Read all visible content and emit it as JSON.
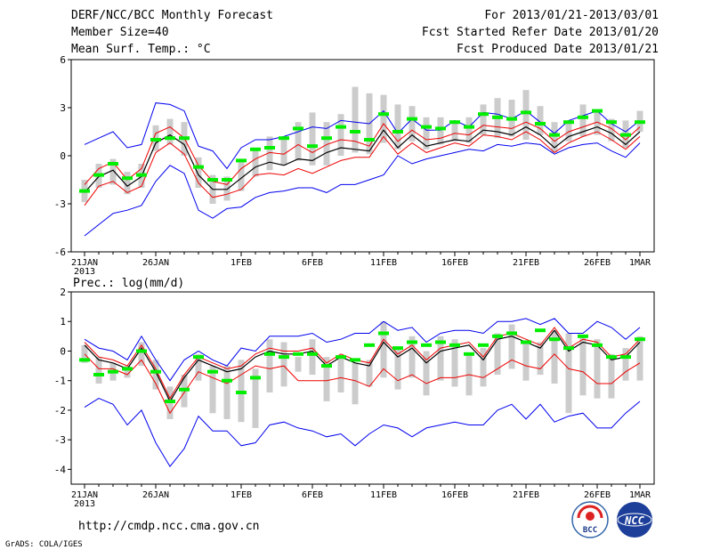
{
  "header": {
    "title": "DERF/NCC/BCC Monthly Forecast",
    "member": "Member Size=40",
    "variable": "Mean Surf. Temp.: °C",
    "forecast_range": "For 2013/01/21-2013/03/01",
    "started": "Fcst Started Refer Date 2013/01/20",
    "produced": "Fcst Produced Date 2013/01/21"
  },
  "footer": {
    "url": "http://cmdp.ncc.cma.gov.cn",
    "grads": "GrADS: COLA/IGES",
    "logo1_text": "BCC",
    "logo2_text": "NCC"
  },
  "colors": {
    "obs": "#00ee00",
    "red": "#ee0000",
    "blue": "#0000ee",
    "mean": "#000000",
    "bar": "#cccccc"
  },
  "chart_data": [
    {
      "type": "line",
      "title": "Mean Surf. Temp.: °C",
      "ylim": [
        -6,
        6
      ],
      "yticks": [
        -6,
        -3,
        0,
        3,
        6
      ],
      "xticks": [
        {
          "day": 0,
          "label": "21JAN",
          "sub": "2013"
        },
        {
          "day": 5,
          "label": "26JAN"
        },
        {
          "day": 11,
          "label": "1FEB"
        },
        {
          "day": 16,
          "label": "6FEB"
        },
        {
          "day": 21,
          "label": "11FEB"
        },
        {
          "day": 26,
          "label": "16FEB"
        },
        {
          "day": 31,
          "label": "21FEB"
        },
        {
          "day": 36,
          "label": "26FEB"
        },
        {
          "day": 39,
          "label": "1MAR"
        }
      ],
      "series": [
        {
          "name": "blue-upper",
          "values": [
            0.7,
            1.1,
            1.5,
            0.5,
            0.7,
            3.3,
            3.2,
            2.8,
            0.6,
            0.3,
            -0.8,
            0.5,
            1.0,
            1.0,
            1.2,
            1.5,
            1.8,
            1.7,
            2.2,
            2.1,
            2.0,
            2.8,
            1.4,
            2.3,
            1.6,
            1.6,
            2.2,
            1.8,
            2.7,
            2.6,
            2.3,
            2.8,
            2.1,
            1.4,
            2.2,
            2.5,
            2.8,
            2.0,
            1.5,
            2.2
          ]
        },
        {
          "name": "red-upper",
          "values": [
            -1.8,
            -0.8,
            -0.4,
            -1.5,
            -0.8,
            1.4,
            1.8,
            1.1,
            -0.6,
            -1.6,
            -1.8,
            -0.8,
            -0.2,
            0.2,
            0.1,
            0.7,
            0.2,
            0.7,
            1.0,
            0.9,
            0.6,
            2.0,
            0.9,
            1.6,
            1.0,
            1.1,
            1.4,
            1.3,
            1.9,
            1.8,
            1.7,
            2.1,
            1.7,
            0.9,
            1.5,
            1.8,
            2.1,
            1.7,
            1.0,
            1.8
          ]
        },
        {
          "name": "ensemble-mean",
          "values": [
            -2.3,
            -1.3,
            -0.9,
            -1.9,
            -1.3,
            0.8,
            1.3,
            0.7,
            -1.2,
            -2.1,
            -2.1,
            -1.4,
            -0.7,
            -0.4,
            -0.6,
            -0.2,
            -0.3,
            0.2,
            0.5,
            0.4,
            0.3,
            1.6,
            0.5,
            1.3,
            0.6,
            0.8,
            1.0,
            0.9,
            1.6,
            1.5,
            1.3,
            1.8,
            1.3,
            0.5,
            1.2,
            1.5,
            1.8,
            1.4,
            0.7,
            1.5
          ]
        },
        {
          "name": "red-lower",
          "values": [
            -3.1,
            -1.9,
            -1.6,
            -2.3,
            -1.9,
            0.2,
            0.8,
            0.1,
            -1.7,
            -2.6,
            -2.4,
            -2.1,
            -1.2,
            -1.1,
            -1.2,
            -0.8,
            -1.1,
            -0.7,
            -0.3,
            -0.1,
            -0.1,
            1.2,
            0.1,
            0.8,
            0.2,
            0.5,
            0.8,
            0.6,
            1.3,
            1.2,
            1.0,
            1.5,
            1.0,
            0.2,
            0.8,
            1.2,
            1.5,
            1.0,
            0.4,
            1.2
          ]
        },
        {
          "name": "blue-lower",
          "values": [
            -5.0,
            -4.3,
            -3.6,
            -3.4,
            -3.1,
            -1.6,
            -0.6,
            -1.1,
            -3.4,
            -3.9,
            -3.3,
            -3.2,
            -2.6,
            -2.3,
            -2.2,
            -2.0,
            -2.0,
            -2.3,
            -1.8,
            -1.8,
            -1.5,
            -1.2,
            0.0,
            -0.5,
            -0.2,
            0.0,
            0.2,
            0.4,
            0.3,
            0.7,
            0.6,
            0.8,
            0.7,
            0.1,
            0.5,
            0.7,
            0.8,
            0.3,
            -0.1,
            0.8
          ]
        }
      ],
      "ensemble_range": [
        [
          -2.9,
          -1.5
        ],
        [
          -2.0,
          -0.5
        ],
        [
          -1.8,
          -0.2
        ],
        [
          -2.4,
          -1.0
        ],
        [
          -2.0,
          -0.5
        ],
        [
          0.3,
          1.9
        ],
        [
          0.7,
          2.3
        ],
        [
          0.0,
          2.1
        ],
        [
          -2.0,
          -0.1
        ],
        [
          -3.0,
          -1.2
        ],
        [
          -2.8,
          -1.3
        ],
        [
          -2.2,
          -0.3
        ],
        [
          -1.3,
          0.5
        ],
        [
          -0.9,
          1.2
        ],
        [
          -0.6,
          1.2
        ],
        [
          -0.3,
          2.1
        ],
        [
          -0.6,
          2.7
        ],
        [
          -0.6,
          2.1
        ],
        [
          0.0,
          2.6
        ],
        [
          0.2,
          4.3
        ],
        [
          0.1,
          3.9
        ],
        [
          0.8,
          3.8
        ],
        [
          0.4,
          3.2
        ],
        [
          0.9,
          3.1
        ],
        [
          0.4,
          2.4
        ],
        [
          0.7,
          2.4
        ],
        [
          0.9,
          2.2
        ],
        [
          0.8,
          2.4
        ],
        [
          1.3,
          3.2
        ],
        [
          1.1,
          3.6
        ],
        [
          1.2,
          3.5
        ],
        [
          1.0,
          4.1
        ],
        [
          1.3,
          3.1
        ],
        [
          0.2,
          2.1
        ],
        [
          0.9,
          2.2
        ],
        [
          1.2,
          3.2
        ],
        [
          1.3,
          2.8
        ],
        [
          0.9,
          2.3
        ],
        [
          0.5,
          2.2
        ],
        [
          1.5,
          2.8
        ]
      ],
      "observed": [
        -2.2,
        -1.2,
        -0.5,
        -1.4,
        -1.2,
        1.0,
        1.1,
        1.1,
        -0.7,
        -1.5,
        -1.5,
        -0.3,
        0.4,
        0.5,
        1.1,
        1.7,
        0.6,
        1.1,
        1.8,
        1.5,
        1.0,
        2.6,
        1.5,
        2.3,
        1.8,
        1.7,
        2.1,
        1.8,
        2.6,
        2.4,
        2.3,
        2.7,
        2.0,
        1.3,
        2.1,
        2.4,
        2.8,
        2.1,
        1.3,
        2.1
      ]
    },
    {
      "type": "line",
      "title": "Prec.: log(mm/d)",
      "ylim": [
        -4.5,
        2
      ],
      "yticks": [
        -4,
        -3,
        -2,
        -1,
        0,
        1,
        2
      ],
      "xticks": [
        {
          "day": 0,
          "label": "21JAN",
          "sub": "2013"
        },
        {
          "day": 5,
          "label": "26JAN"
        },
        {
          "day": 11,
          "label": "1FEB"
        },
        {
          "day": 16,
          "label": "6FEB"
        },
        {
          "day": 21,
          "label": "11FEB"
        },
        {
          "day": 26,
          "label": "16FEB"
        },
        {
          "day": 31,
          "label": "21FEB"
        },
        {
          "day": 36,
          "label": "26FEB"
        },
        {
          "day": 39,
          "label": "1MAR"
        }
      ],
      "series": [
        {
          "name": "blue-upper",
          "values": [
            0.4,
            0.1,
            0.0,
            -0.3,
            0.5,
            -0.3,
            -1.0,
            -0.3,
            0.0,
            -0.3,
            -0.5,
            0.1,
            0.0,
            0.5,
            0.5,
            0.5,
            0.6,
            0.3,
            0.4,
            0.6,
            0.6,
            1.0,
            0.7,
            0.8,
            0.3,
            0.6,
            0.7,
            0.7,
            0.6,
            1.0,
            1.0,
            1.1,
            0.9,
            1.1,
            0.6,
            0.6,
            1.0,
            0.8,
            0.4,
            0.8
          ]
        },
        {
          "name": "red-upper",
          "values": [
            0.3,
            -0.2,
            -0.3,
            -0.5,
            0.2,
            -0.6,
            -1.6,
            -0.8,
            -0.2,
            -0.4,
            -0.6,
            -0.5,
            -0.1,
            0.1,
            0.0,
            0.0,
            0.1,
            -0.4,
            -0.1,
            -0.3,
            -0.4,
            0.4,
            -0.1,
            0.2,
            -0.3,
            0.1,
            0.2,
            0.3,
            -0.2,
            0.5,
            0.6,
            0.4,
            0.2,
            0.8,
            0.1,
            0.4,
            0.3,
            -0.2,
            -0.1,
            0.4
          ]
        },
        {
          "name": "ensemble-mean",
          "values": [
            0.2,
            -0.3,
            -0.4,
            -0.6,
            0.1,
            -0.7,
            -1.7,
            -0.9,
            -0.3,
            -0.5,
            -0.7,
            -0.6,
            -0.2,
            0.0,
            -0.1,
            -0.1,
            0.0,
            -0.5,
            -0.2,
            -0.4,
            -0.5,
            0.3,
            -0.2,
            0.1,
            -0.4,
            0.0,
            0.1,
            0.2,
            -0.3,
            0.4,
            0.5,
            0.3,
            0.1,
            0.7,
            0.0,
            0.3,
            0.2,
            -0.3,
            -0.2,
            0.3
          ]
        },
        {
          "name": "red-lower",
          "values": [
            -0.1,
            -0.6,
            -0.6,
            -0.8,
            -0.3,
            -1.1,
            -2.1,
            -1.4,
            -0.7,
            -0.9,
            -1.1,
            -0.8,
            -0.5,
            -0.6,
            -0.5,
            -1.0,
            -1.0,
            -1.0,
            -0.9,
            -1.0,
            -1.2,
            -0.6,
            -1.0,
            -0.8,
            -1.1,
            -0.9,
            -0.9,
            -0.8,
            -0.9,
            -0.6,
            -0.3,
            -0.5,
            -0.6,
            -0.1,
            -0.6,
            -0.7,
            -1.1,
            -1.1,
            -0.7,
            -0.4
          ]
        },
        {
          "name": "blue-lower",
          "values": [
            -1.9,
            -1.6,
            -1.8,
            -2.5,
            -2.0,
            -3.1,
            -3.9,
            -3.3,
            -2.2,
            -2.7,
            -2.7,
            -3.2,
            -3.1,
            -2.5,
            -2.4,
            -2.6,
            -2.7,
            -2.9,
            -2.8,
            -3.2,
            -2.8,
            -2.5,
            -2.6,
            -2.9,
            -2.6,
            -2.5,
            -2.4,
            -2.5,
            -2.5,
            -2.0,
            -1.8,
            -2.3,
            -1.8,
            -2.4,
            -2.2,
            -2.1,
            -2.6,
            -2.6,
            -2.1,
            -1.7
          ]
        }
      ],
      "ensemble_range": [
        [
          -0.4,
          0.2
        ],
        [
          -1.1,
          -0.2
        ],
        [
          -1.0,
          -0.4
        ],
        [
          -0.9,
          -0.5
        ],
        [
          -0.5,
          0.3
        ],
        [
          -1.3,
          -0.3
        ],
        [
          -2.3,
          -1.2
        ],
        [
          -1.9,
          -0.8
        ],
        [
          -1.0,
          -0.1
        ],
        [
          -2.1,
          -0.5
        ],
        [
          -2.3,
          -0.5
        ],
        [
          -2.4,
          -0.3
        ],
        [
          -2.6,
          -0.6
        ],
        [
          -1.4,
          0.4
        ],
        [
          -1.2,
          0.3
        ],
        [
          -0.7,
          -0.2
        ],
        [
          -0.8,
          0.4
        ],
        [
          -1.7,
          -0.2
        ],
        [
          -1.4,
          -0.2
        ],
        [
          -1.8,
          -0.4
        ],
        [
          -1.2,
          -0.3
        ],
        [
          -0.9,
          1.0
        ],
        [
          -1.3,
          0.1
        ],
        [
          -0.9,
          0.5
        ],
        [
          -1.5,
          0.0
        ],
        [
          -1.0,
          0.5
        ],
        [
          -1.2,
          0.4
        ],
        [
          -1.5,
          -0.1
        ],
        [
          -1.2,
          0.1
        ],
        [
          -0.8,
          0.6
        ],
        [
          -0.6,
          0.9
        ],
        [
          -1.0,
          0.3
        ],
        [
          -0.8,
          0.3
        ],
        [
          -1.1,
          0.7
        ],
        [
          -2.1,
          0.6
        ],
        [
          -1.5,
          0.5
        ],
        [
          -1.6,
          0.4
        ],
        [
          -1.6,
          -0.1
        ],
        [
          -1.0,
          0.1
        ],
        [
          -1.0,
          0.5
        ]
      ],
      "observed": [
        -0.3,
        -0.8,
        -0.7,
        -0.6,
        0.0,
        -0.7,
        -1.7,
        -1.3,
        -0.2,
        -0.7,
        -1.0,
        -1.4,
        -0.9,
        -0.1,
        -0.2,
        -0.1,
        -0.1,
        -0.5,
        -0.2,
        -0.3,
        0.2,
        0.6,
        0.1,
        0.3,
        0.2,
        0.3,
        0.2,
        -0.1,
        0.2,
        0.5,
        0.6,
        0.3,
        0.7,
        0.4,
        0.1,
        0.5,
        0.2,
        -0.2,
        -0.2,
        0.4
      ]
    }
  ]
}
